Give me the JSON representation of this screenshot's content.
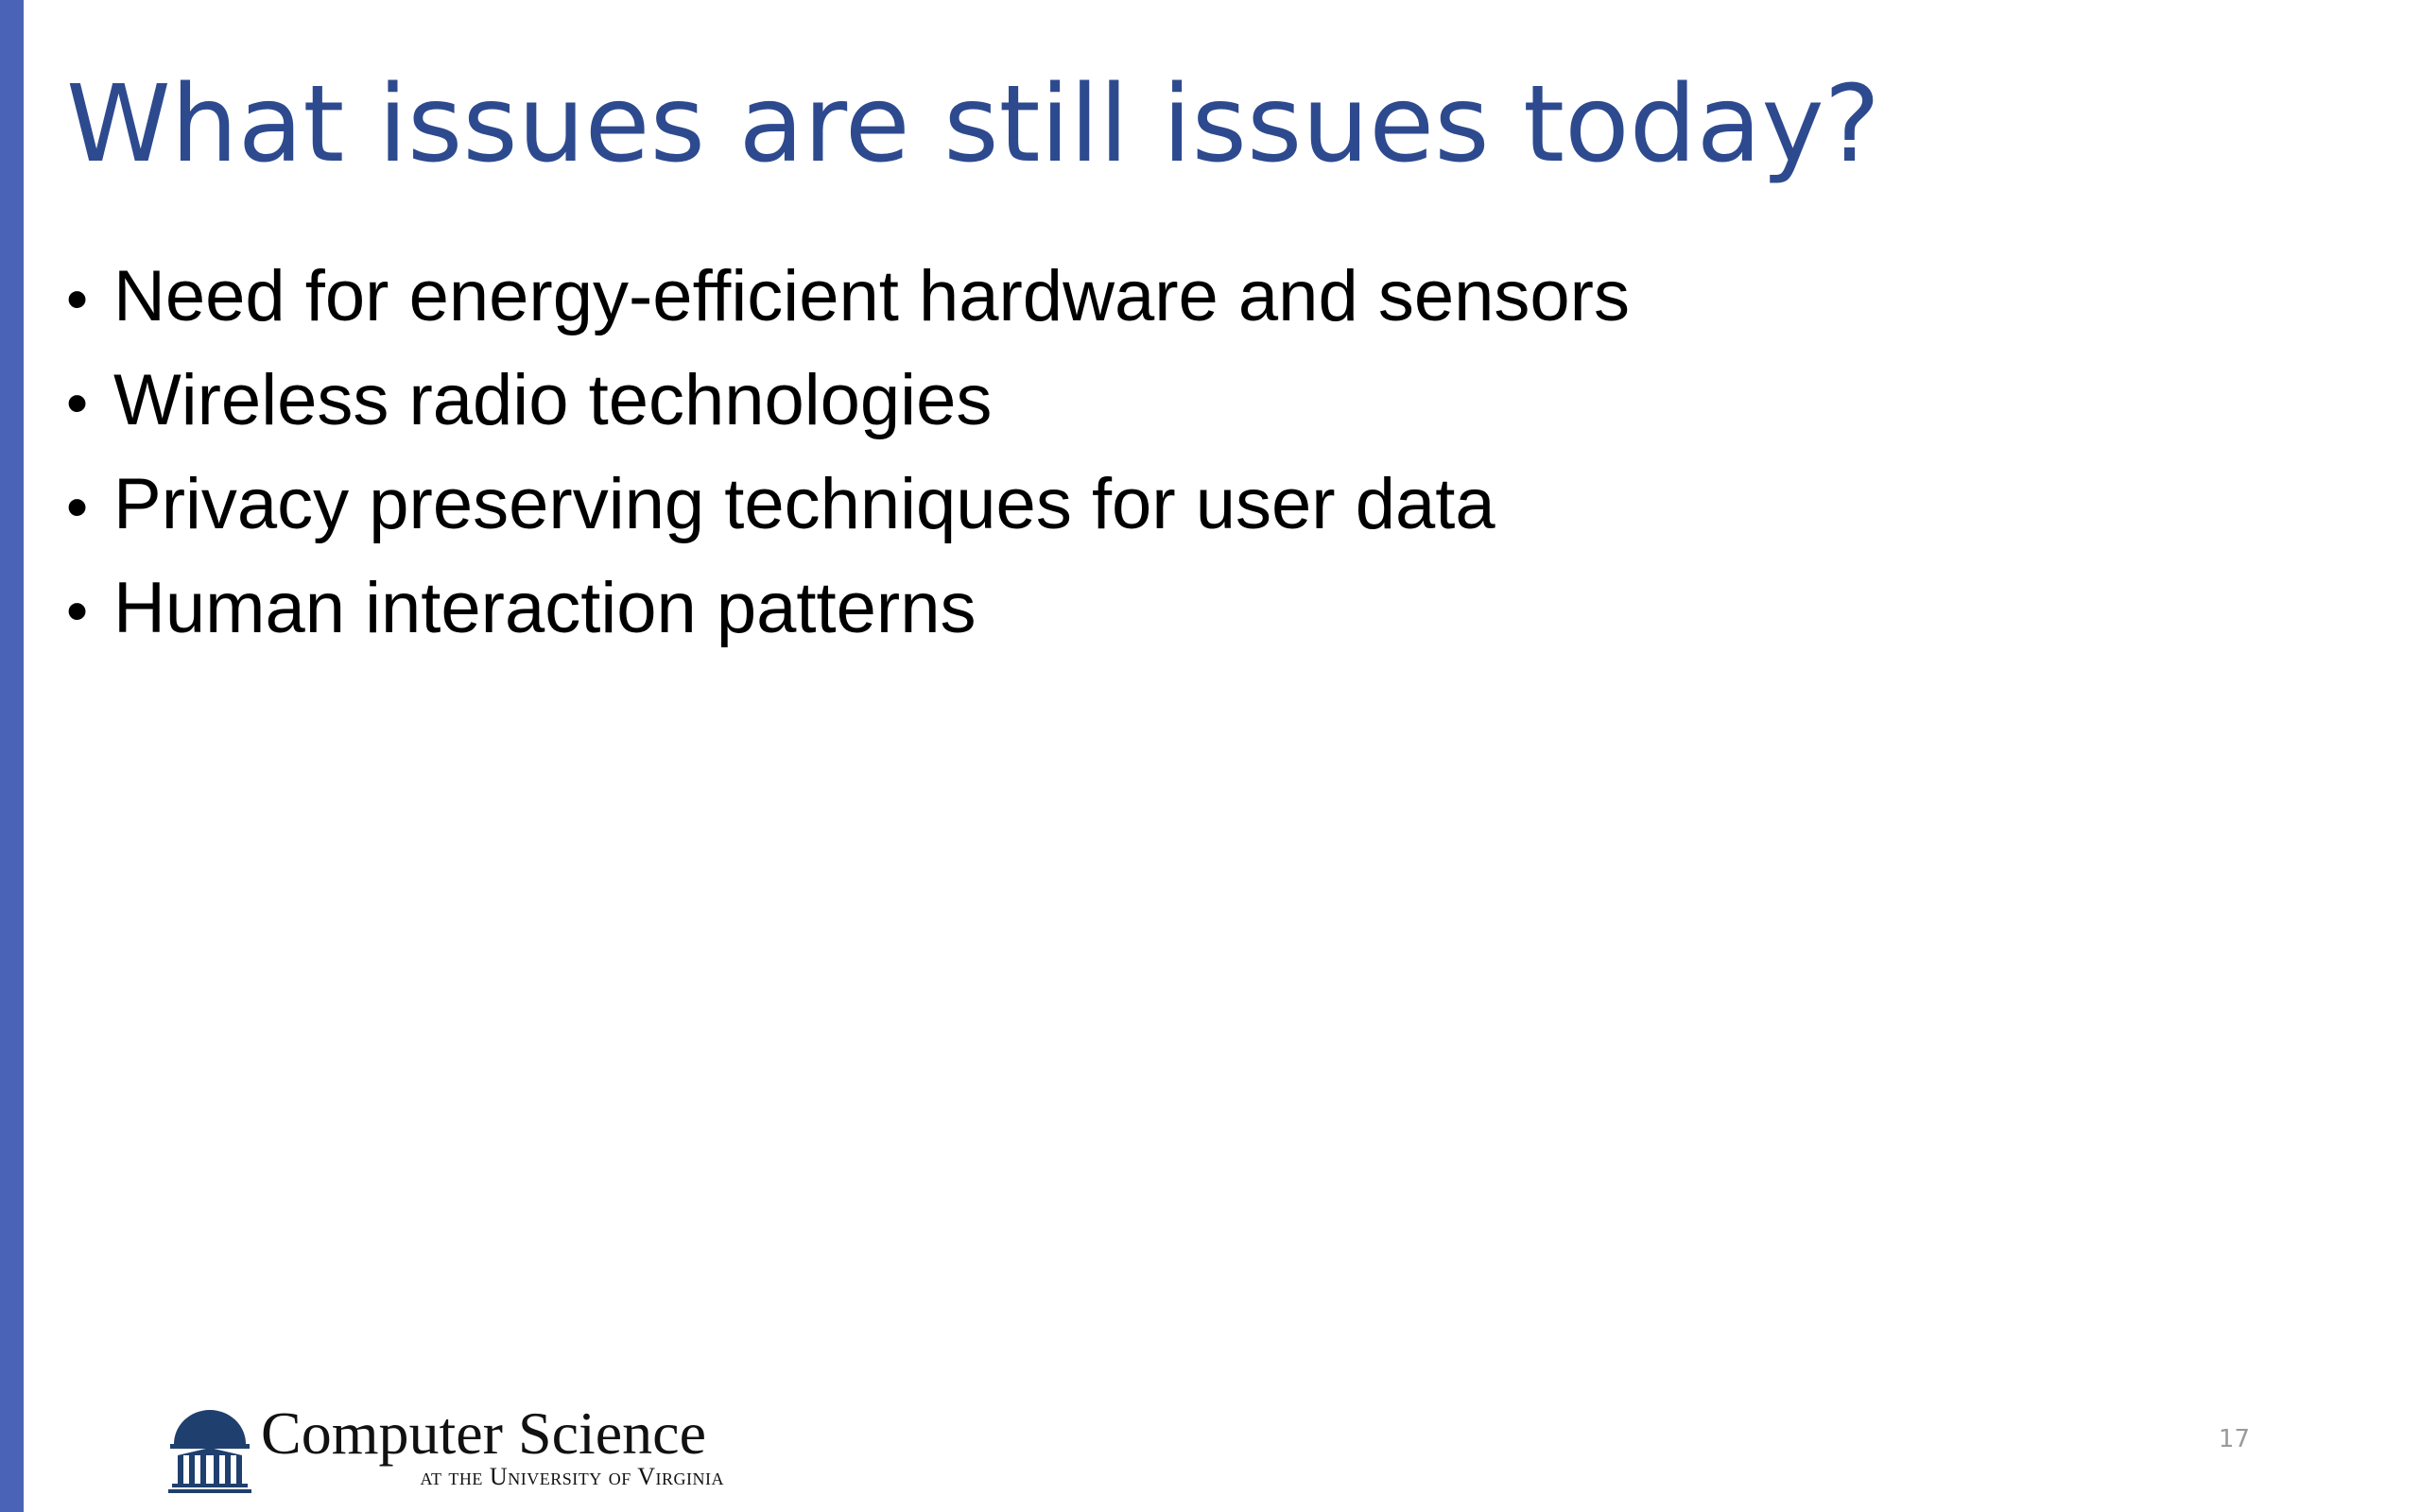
{
  "slide": {
    "title": "What issues are still issues today?",
    "bullet_symbol": "•",
    "bullets": [
      "Need for energy-efficient hardware and sensors",
      "Wireless radio technologies",
      "Privacy preserving techniques for user data",
      "Human interaction patterns"
    ],
    "page_number": "17"
  },
  "footer": {
    "logo_title": "Computer Science",
    "logo_subtitle": "at the University of Virginia"
  },
  "colors": {
    "accent_bar": "#4a63b6",
    "title": "#2e4a8f",
    "logo_navy": "#1f3f6e"
  },
  "icons": {
    "logo_mark": "rotunda-icon"
  }
}
